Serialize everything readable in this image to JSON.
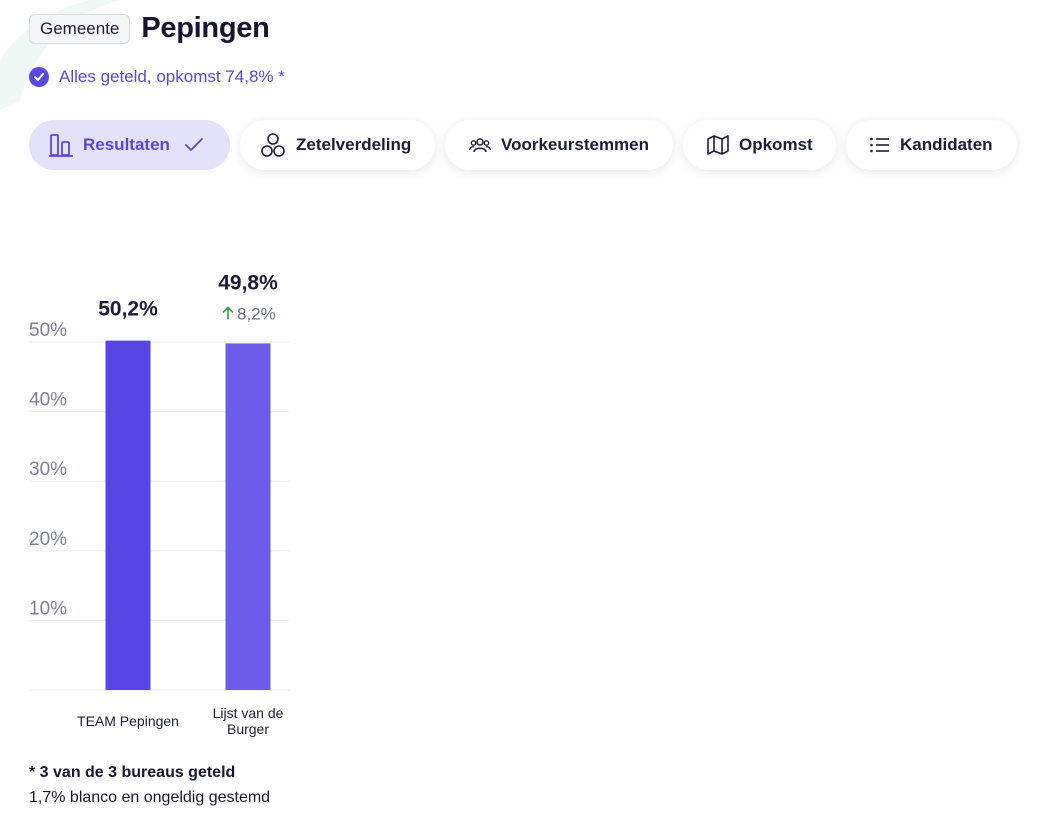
{
  "header": {
    "badge": "Gemeente",
    "title": "Pepingen"
  },
  "status": {
    "text": "Alles geteld, opkomst 74,8% *"
  },
  "tabs": [
    {
      "label": "Resultaten",
      "icon": "bar-chart-icon",
      "active": true
    },
    {
      "label": "Zetelverdeling",
      "icon": "circles-icon",
      "active": false
    },
    {
      "label": "Voorkeurstemmen",
      "icon": "people-icon",
      "active": false
    },
    {
      "label": "Opkomst",
      "icon": "map-icon",
      "active": false
    },
    {
      "label": "Kandidaten",
      "icon": "list-icon",
      "active": false
    }
  ],
  "colors": {
    "accent": "#5b48d9",
    "bar1": "#5945e6",
    "bar2": "#6c5ce9",
    "up": "#2f9a45"
  },
  "chart_data": {
    "type": "bar",
    "categories": [
      "TEAM Pepingen",
      "Lijst van de Burger"
    ],
    "values": [
      50.2,
      49.8
    ],
    "value_labels": [
      "50,2%",
      "49,8%"
    ],
    "changes": [
      null,
      "8,2%"
    ],
    "yticks": [
      "10%",
      "20%",
      "30%",
      "40%",
      "50%"
    ],
    "ytick_values": [
      10,
      20,
      30,
      40,
      50
    ],
    "ylim": [
      0,
      50
    ],
    "grid": true
  },
  "notes": {
    "bureaus": "* 3 van de 3 bureaus geteld",
    "blanco": "1,7% blanco en ongeldig gestemd"
  }
}
